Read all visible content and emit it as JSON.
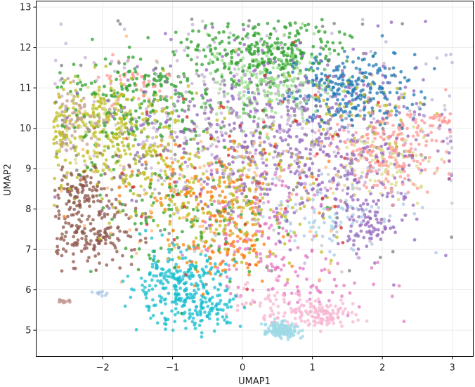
{
  "chart_data": {
    "type": "scatter",
    "title": "",
    "xlabel": "UMAP1",
    "ylabel": "UMAP2",
    "xlim": [
      -2.95,
      3.3
    ],
    "ylim": [
      4.35,
      13.15
    ],
    "x_ticks": [
      -2,
      -1,
      0,
      1,
      2,
      3
    ],
    "y_ticks": [
      5,
      6,
      7,
      8,
      9,
      10,
      11,
      12,
      13
    ],
    "x_tick_labels": [
      "−2",
      "−1",
      "0",
      "1",
      "2",
      "3"
    ],
    "y_tick_labels": [
      "5",
      "6",
      "7",
      "8",
      "9",
      "10",
      "11",
      "12",
      "13"
    ],
    "grid": true,
    "legend": "none",
    "marker_opacity": 0.75,
    "point_count_approx": 6000,
    "series": [
      {
        "color": "#1f77b4",
        "clusters": [
          {
            "cx": 1.55,
            "cy": 10.95,
            "sx": 0.45,
            "sy": 0.45,
            "n": 260
          }
        ]
      },
      {
        "color": "#ff7f0e",
        "clusters": [
          {
            "cx": -0.2,
            "cy": 7.2,
            "sx": 0.35,
            "sy": 0.55,
            "n": 120
          },
          {
            "cx": -0.8,
            "cy": 8.6,
            "sx": 0.7,
            "sy": 0.6,
            "n": 90
          }
        ]
      },
      {
        "color": "#2ca02c",
        "clusters": [
          {
            "cx": 0.3,
            "cy": 11.9,
            "sx": 0.55,
            "sy": 0.4,
            "n": 260
          },
          {
            "cx": -1.4,
            "cy": 10.7,
            "sx": 0.6,
            "sy": 0.6,
            "n": 230
          },
          {
            "cx": -0.8,
            "cy": 7.8,
            "sx": 0.8,
            "sy": 0.9,
            "n": 120
          }
        ]
      },
      {
        "color": "#d62728",
        "clusters": [
          {
            "cx": 0.2,
            "cy": 9.2,
            "sx": 1.2,
            "sy": 1.2,
            "n": 70
          }
        ]
      },
      {
        "color": "#9467bd",
        "clusters": [
          {
            "cx": 0.4,
            "cy": 10.0,
            "sx": 1.1,
            "sy": 1.0,
            "n": 420
          },
          {
            "cx": 1.5,
            "cy": 8.9,
            "sx": 0.6,
            "sy": 0.9,
            "n": 180
          },
          {
            "cx": 1.8,
            "cy": 7.6,
            "sx": 0.15,
            "sy": 0.3,
            "n": 60
          }
        ]
      },
      {
        "color": "#8c564b",
        "clusters": [
          {
            "cx": -2.35,
            "cy": 8.45,
            "sx": 0.2,
            "sy": 0.25,
            "n": 90
          },
          {
            "cx": -2.2,
            "cy": 7.3,
            "sx": 0.3,
            "sy": 0.3,
            "n": 110
          },
          {
            "cx": -1.9,
            "cy": 8.0,
            "sx": 0.3,
            "sy": 0.7,
            "n": 70
          }
        ]
      },
      {
        "color": "#e377c2",
        "clusters": [
          {
            "cx": 0.2,
            "cy": 7.6,
            "sx": 0.4,
            "sy": 0.8,
            "n": 130
          },
          {
            "cx": 0.9,
            "cy": 6.2,
            "sx": 0.6,
            "sy": 0.5,
            "n": 60
          }
        ]
      },
      {
        "color": "#7f7f7f",
        "clusters": [
          {
            "cx": -0.2,
            "cy": 9.5,
            "sx": 1.3,
            "sy": 1.4,
            "n": 180
          }
        ]
      },
      {
        "color": "#bcbd22",
        "clusters": [
          {
            "cx": -2.0,
            "cy": 10.1,
            "sx": 0.45,
            "sy": 0.55,
            "n": 260
          },
          {
            "cx": -1.0,
            "cy": 9.0,
            "sx": 0.8,
            "sy": 0.7,
            "n": 200
          },
          {
            "cx": 0.0,
            "cy": 8.0,
            "sx": 0.6,
            "sy": 0.8,
            "n": 120
          },
          {
            "cx": 1.6,
            "cy": 10.5,
            "sx": 0.5,
            "sy": 0.5,
            "n": 60
          }
        ]
      },
      {
        "color": "#17becf",
        "clusters": [
          {
            "cx": -0.95,
            "cy": 6.1,
            "sx": 0.35,
            "sy": 0.45,
            "n": 260
          },
          {
            "cx": -0.5,
            "cy": 5.5,
            "sx": 0.25,
            "sy": 0.2,
            "n": 80
          }
        ]
      },
      {
        "color": "#aec7e8",
        "clusters": [
          {
            "cx": -2.0,
            "cy": 5.9,
            "sx": 0.08,
            "sy": 0.05,
            "n": 12
          },
          {
            "cx": 1.4,
            "cy": 8.0,
            "sx": 0.7,
            "sy": 0.6,
            "n": 60
          }
        ]
      },
      {
        "color": "#ffbb78",
        "clusters": [
          {
            "cx": -0.2,
            "cy": 8.6,
            "sx": 1.3,
            "sy": 1.3,
            "n": 90
          }
        ]
      },
      {
        "color": "#98df8a",
        "clusters": [
          {
            "cx": 0.4,
            "cy": 11.1,
            "sx": 0.45,
            "sy": 0.5,
            "n": 200
          }
        ]
      },
      {
        "color": "#ff9896",
        "clusters": [
          {
            "cx": 2.1,
            "cy": 9.5,
            "sx": 0.4,
            "sy": 0.5,
            "n": 200
          },
          {
            "cx": -1.6,
            "cy": 11.2,
            "sx": 0.3,
            "sy": 0.25,
            "n": 40
          },
          {
            "cx": 2.85,
            "cy": 10.25,
            "sx": 0.1,
            "sy": 0.1,
            "n": 20
          }
        ]
      },
      {
        "color": "#c5b0d5",
        "clusters": [
          {
            "cx": 0.0,
            "cy": 10.3,
            "sx": 1.4,
            "sy": 1.2,
            "n": 260
          }
        ]
      },
      {
        "color": "#c49c94",
        "clusters": [
          {
            "cx": -2.55,
            "cy": 5.72,
            "sx": 0.05,
            "sy": 0.02,
            "n": 15
          },
          {
            "cx": -2.4,
            "cy": 10.2,
            "sx": 0.2,
            "sy": 0.4,
            "n": 60
          }
        ]
      },
      {
        "color": "#f7b6d2",
        "clusters": [
          {
            "cx": 1.1,
            "cy": 5.4,
            "sx": 0.25,
            "sy": 0.15,
            "n": 130
          },
          {
            "cx": 0.3,
            "cy": 5.8,
            "sx": 0.3,
            "sy": 0.3,
            "n": 50
          }
        ]
      },
      {
        "color": "#c7c7c7",
        "clusters": [
          {
            "cx": 0.3,
            "cy": 9.0,
            "sx": 1.2,
            "sy": 1.3,
            "n": 80
          }
        ]
      },
      {
        "color": "#dbdb8d",
        "clusters": [
          {
            "cx": 2.1,
            "cy": 9.1,
            "sx": 0.35,
            "sy": 0.5,
            "n": 90
          },
          {
            "cx": -2.1,
            "cy": 10.0,
            "sx": 0.3,
            "sy": 0.4,
            "n": 60
          }
        ]
      },
      {
        "color": "#9edae5",
        "clusters": [
          {
            "cx": 0.55,
            "cy": 5.0,
            "sx": 0.12,
            "sy": 0.1,
            "n": 150
          },
          {
            "cx": 1.2,
            "cy": 7.7,
            "sx": 0.3,
            "sy": 0.3,
            "n": 30
          }
        ]
      }
    ]
  }
}
